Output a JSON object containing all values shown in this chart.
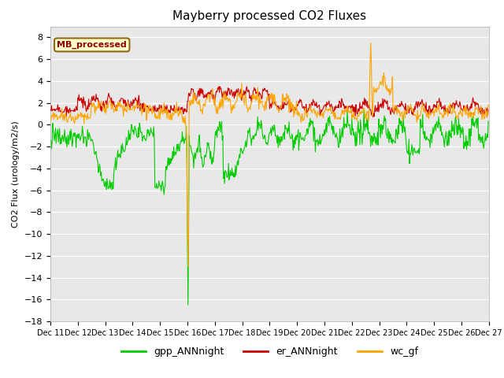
{
  "title": "Mayberry processed CO2 Fluxes",
  "ylabel": "CO2 Flux (urology/m2/s)",
  "ylim": [
    -18,
    9
  ],
  "yticks": [
    -18,
    -16,
    -14,
    -12,
    -10,
    -8,
    -6,
    -4,
    -2,
    0,
    2,
    4,
    6,
    8
  ],
  "legend_label": "MB_processed",
  "legend_label_color": "#8B0000",
  "legend_bg": "#FFFFCC",
  "legend_border": "#8B6914",
  "series": {
    "gpp_ANNnight": {
      "color": "#00CC00",
      "linewidth": 0.8
    },
    "er_ANNnight": {
      "color": "#CC0000",
      "linewidth": 0.8
    },
    "wc_gf": {
      "color": "#FFA500",
      "linewidth": 0.8
    }
  },
  "background_color": "#E8E8E8",
  "grid_color": "#FFFFFF",
  "fig_bg": "#FFFFFF",
  "title_fontsize": 11,
  "ylabel_fontsize": 8,
  "ytick_fontsize": 8,
  "xtick_fontsize": 7
}
